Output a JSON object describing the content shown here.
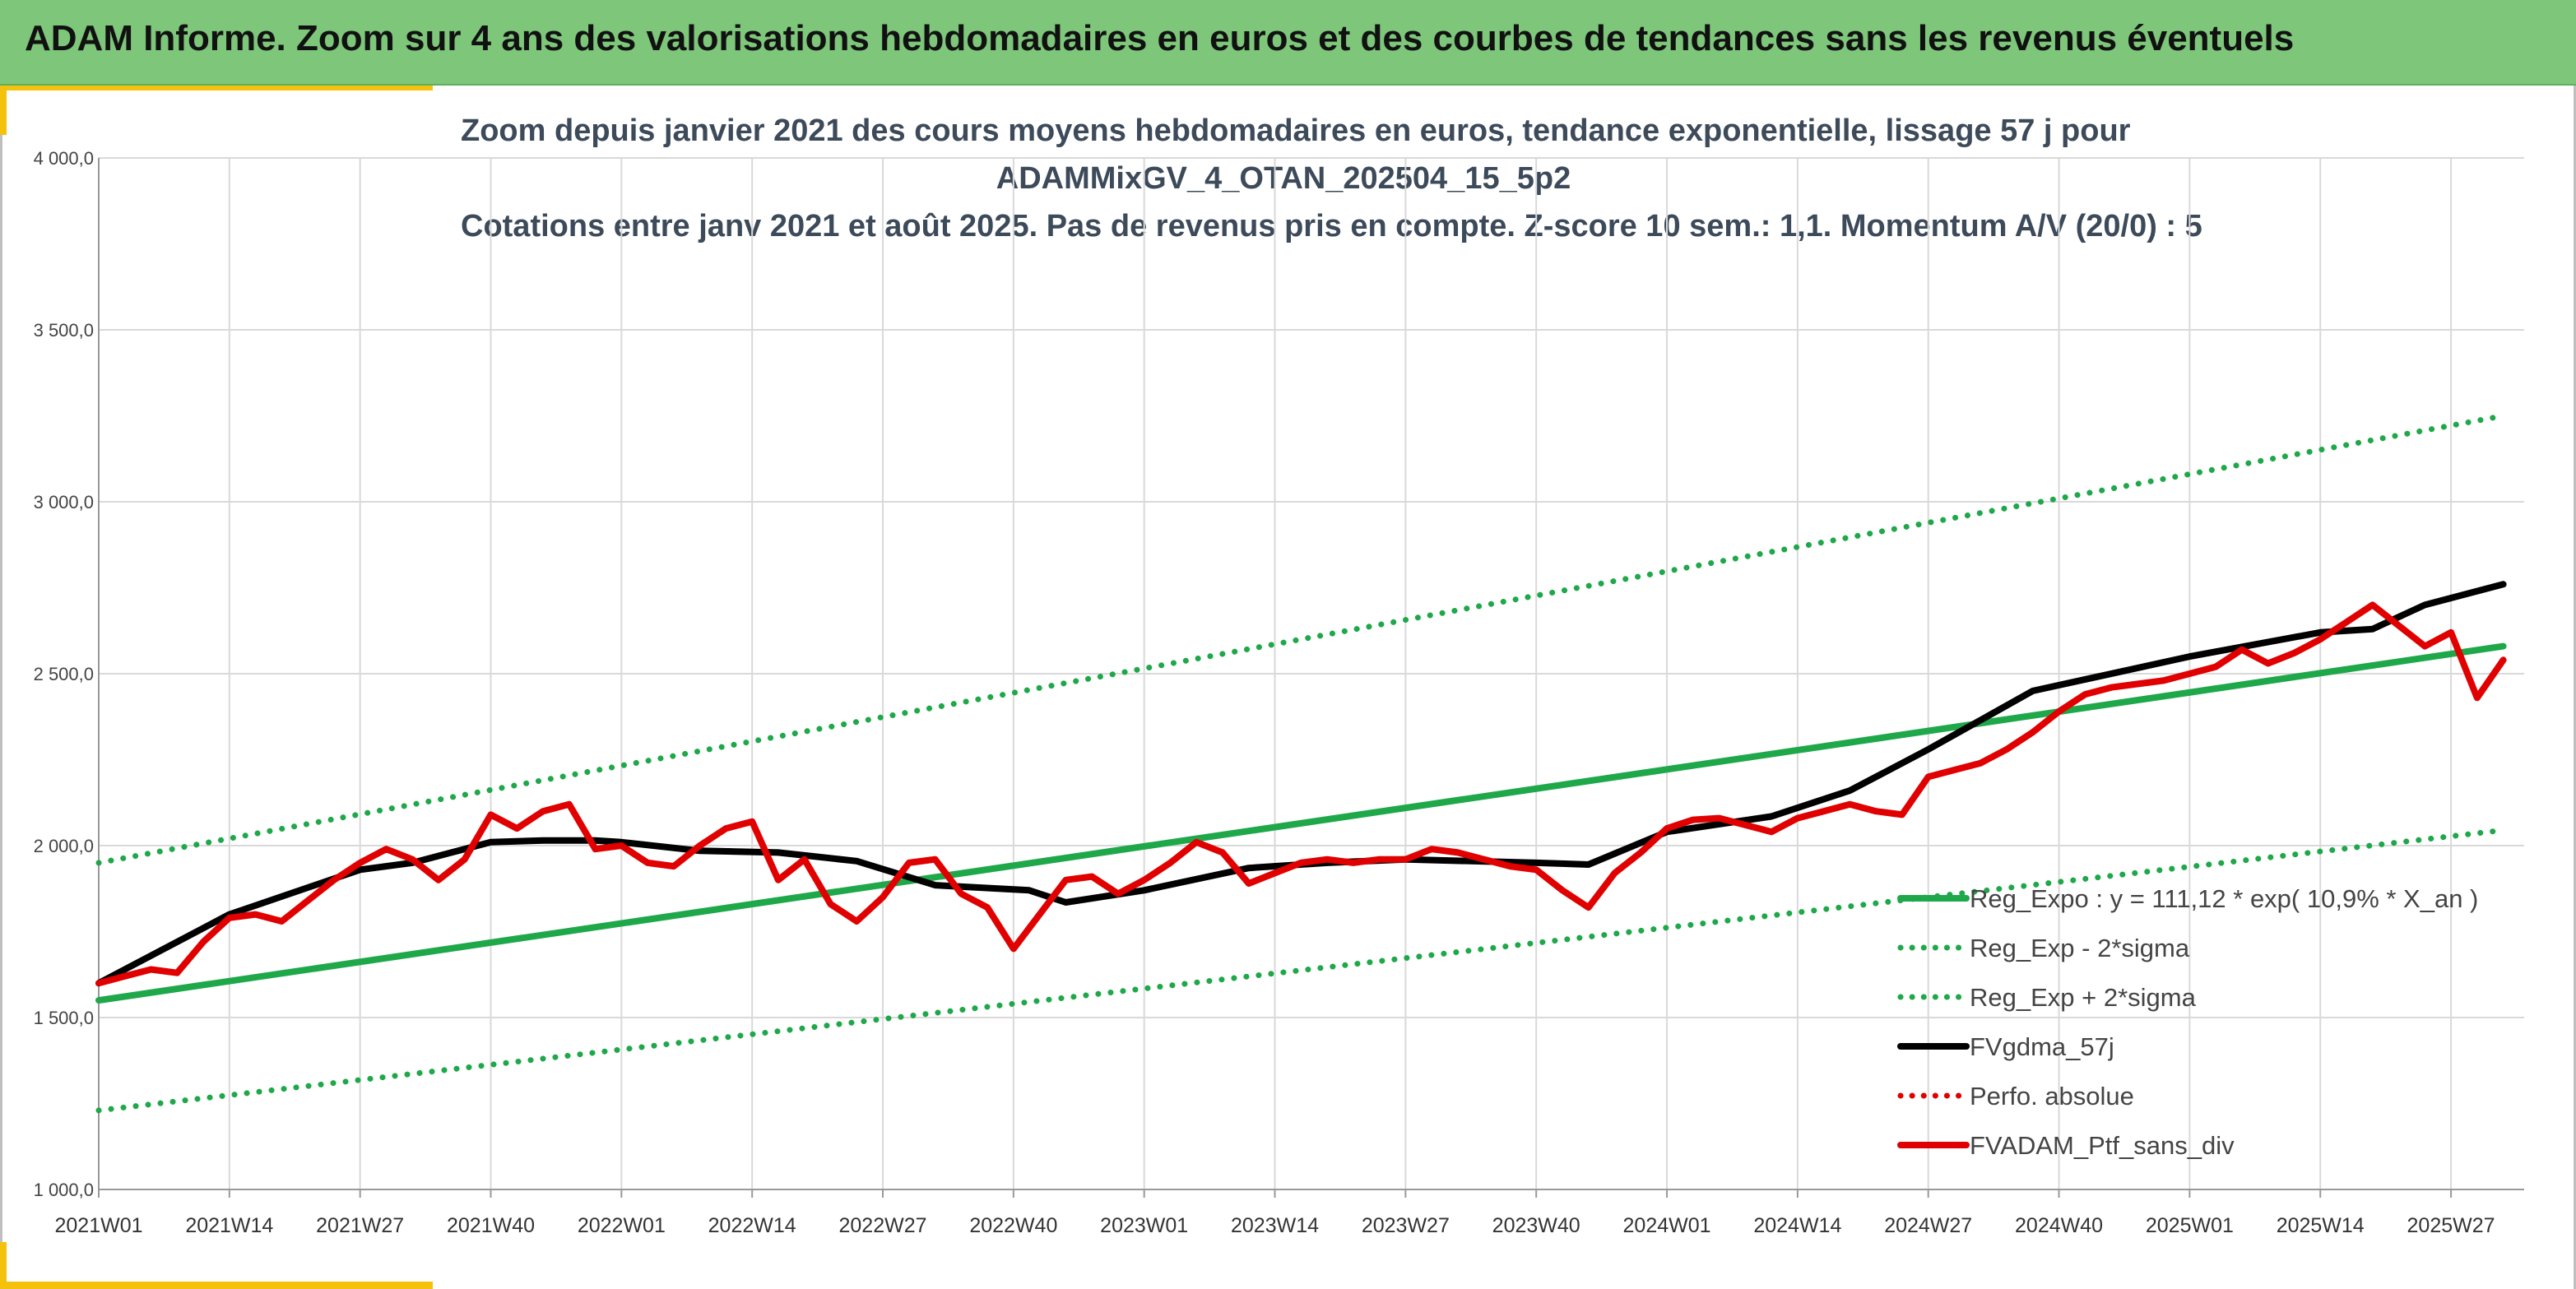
{
  "banner": {
    "title": "ADAM Informe. Zoom sur 4 ans des valorisations hebdomadaires en euros et des courbes de tendances sans les revenus éventuels"
  },
  "colors": {
    "banner": "#7dc67a",
    "accent_corner": "#f4c20d",
    "title_text": "#3c4a5a",
    "grid": "#d9d9d9"
  },
  "chart_data": {
    "type": "line",
    "title_lines": [
      "Zoom depuis janvier 2021 des cours moyens hebdomadaires en euros, tendance exponentielle, lissage 57 j pour",
      "ADAMMixGV_4_OTAN_202504_15_5p2",
      "Cotations entre janv 2021 et août 2025. Pas de revenus pris en compte. Z-score 10 sem.: 1,1. Momentum A/V (20/0) : 5"
    ],
    "xlabel": "",
    "ylabel": "",
    "ylim": [
      1000,
      4000
    ],
    "y_ticks": [
      1000,
      1500,
      2000,
      2500,
      3000,
      3500,
      4000
    ],
    "y_tick_labels": [
      "1 000,0",
      "1 500,0",
      "2 000,0",
      "2 500,0",
      "3 000,0",
      "3 500,0",
      "4 000,0"
    ],
    "x_tick_labels": [
      "2021W01",
      "2021W14",
      "2021W27",
      "2021W40",
      "2022W01",
      "2022W14",
      "2022W27",
      "2022W40",
      "2023W01",
      "2023W14",
      "2023W27",
      "2023W40",
      "2024W01",
      "2024W14",
      "2024W27",
      "2024W40",
      "2025W01",
      "2025W14",
      "2025W27"
    ],
    "grid": true,
    "legend_position": "bottom-right",
    "series": [
      {
        "name": "Reg_Expo : y = 111,12 * exp( 10,9% *  X_an )",
        "color": "#1fa84a",
        "style": "solid",
        "x": [
          2021.0,
          2025.6
        ],
        "y": [
          1550,
          2580
        ]
      },
      {
        "name": "Reg_Exp - 2*sigma",
        "color": "#1fa84a",
        "style": "dotted",
        "x": [
          2021.0,
          2025.6
        ],
        "y": [
          1230,
          2045
        ]
      },
      {
        "name": "Reg_Exp + 2*sigma",
        "color": "#1fa84a",
        "style": "dotted",
        "x": [
          2021.0,
          2025.6
        ],
        "y": [
          1950,
          3250
        ]
      },
      {
        "name": "FVgdma_57j",
        "color": "#000000",
        "style": "solid",
        "x": [
          2021.0,
          2021.25,
          2021.5,
          2021.6,
          2021.75,
          2021.85,
          2021.95,
          2022.0,
          2022.15,
          2022.3,
          2022.45,
          2022.6,
          2022.78,
          2022.85,
          2023.0,
          2023.2,
          2023.35,
          2023.5,
          2023.75,
          2023.85,
          2024.0,
          2024.2,
          2024.35,
          2024.5,
          2024.7,
          2025.0,
          2025.25,
          2025.35,
          2025.45,
          2025.6
        ],
        "y": [
          1600,
          1800,
          1930,
          1950,
          2010,
          2015,
          2015,
          2010,
          1985,
          1980,
          1955,
          1885,
          1870,
          1835,
          1870,
          1935,
          1950,
          1960,
          1950,
          1945,
          2040,
          2085,
          2160,
          2280,
          2450,
          2550,
          2620,
          2630,
          2700,
          2760
        ]
      },
      {
        "name": "Perfo. absolue",
        "color": "#e10000",
        "style": "dotted",
        "x": [],
        "y": []
      },
      {
        "name": "FVADAM_Ptf_sans_div",
        "color": "#e10000",
        "style": "solid",
        "x": [
          2021.0,
          2021.05,
          2021.1,
          2021.15,
          2021.2,
          2021.25,
          2021.3,
          2021.35,
          2021.4,
          2021.45,
          2021.5,
          2021.55,
          2021.6,
          2021.65,
          2021.7,
          2021.75,
          2021.8,
          2021.85,
          2021.9,
          2021.95,
          2022.0,
          2022.05,
          2022.1,
          2022.15,
          2022.2,
          2022.25,
          2022.3,
          2022.35,
          2022.4,
          2022.45,
          2022.5,
          2022.55,
          2022.6,
          2022.65,
          2022.7,
          2022.75,
          2022.8,
          2022.85,
          2022.9,
          2022.95,
          2023.0,
          2023.05,
          2023.1,
          2023.15,
          2023.2,
          2023.25,
          2023.3,
          2023.35,
          2023.4,
          2023.45,
          2023.5,
          2023.55,
          2023.6,
          2023.65,
          2023.7,
          2023.75,
          2023.8,
          2023.85,
          2023.9,
          2023.95,
          2024.0,
          2024.05,
          2024.1,
          2024.15,
          2024.2,
          2024.25,
          2024.3,
          2024.35,
          2024.4,
          2024.45,
          2024.5,
          2024.55,
          2024.6,
          2024.65,
          2024.7,
          2024.75,
          2024.8,
          2024.85,
          2024.9,
          2024.95,
          2025.0,
          2025.05,
          2025.1,
          2025.15,
          2025.2,
          2025.25,
          2025.3,
          2025.35,
          2025.4,
          2025.45,
          2025.5,
          2025.55,
          2025.6
        ],
        "y": [
          1600,
          1620,
          1640,
          1630,
          1720,
          1790,
          1800,
          1780,
          1840,
          1900,
          1950,
          1990,
          1960,
          1900,
          1960,
          2090,
          2050,
          2100,
          2120,
          1990,
          2000,
          1950,
          1940,
          2000,
          2050,
          2070,
          1900,
          1960,
          1830,
          1780,
          1850,
          1950,
          1960,
          1860,
          1820,
          1700,
          1800,
          1900,
          1910,
          1860,
          1900,
          1950,
          2010,
          1980,
          1890,
          1920,
          1950,
          1960,
          1950,
          1960,
          1960,
          1990,
          1980,
          1960,
          1940,
          1930,
          1870,
          1820,
          1920,
          1980,
          2050,
          2075,
          2080,
          2060,
          2040,
          2080,
          2100,
          2120,
          2100,
          2090,
          2200,
          2220,
          2240,
          2280,
          2330,
          2390,
          2440,
          2460,
          2470,
          2480,
          2500,
          2520,
          2570,
          2530,
          2560,
          2600,
          2650,
          2700,
          2640,
          2580,
          2620,
          2430,
          2540
        ]
      }
    ]
  }
}
